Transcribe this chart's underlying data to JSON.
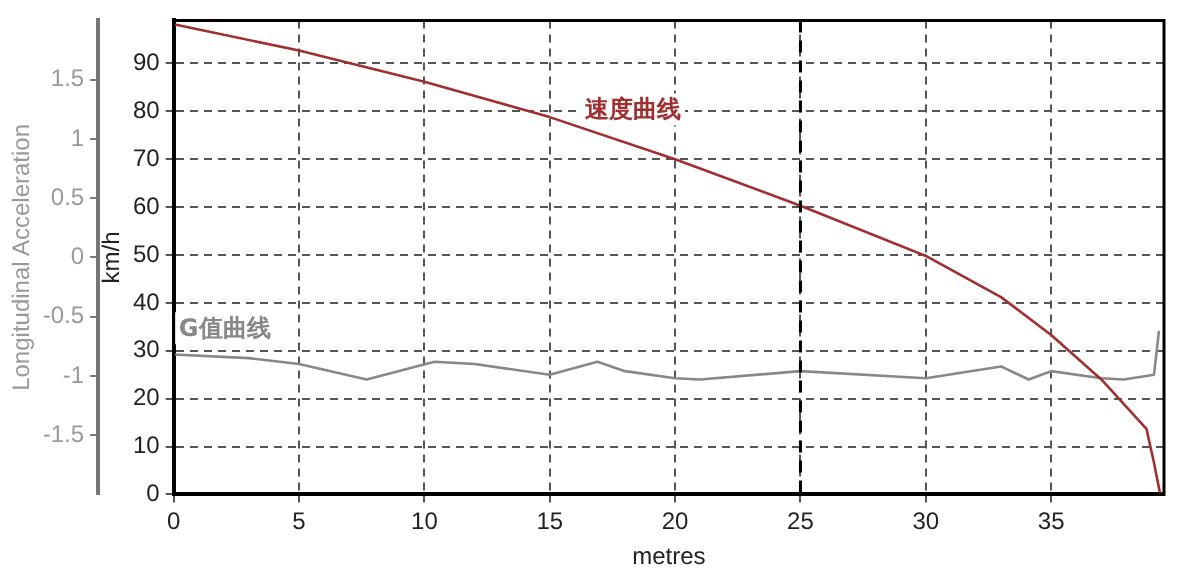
{
  "chart_data": {
    "type": "line",
    "xlabel": "metres",
    "ylabel": "km/h",
    "y2label": "Longitudinal Acceleration",
    "xlim": [
      0,
      39.5
    ],
    "xticks": [
      0,
      5,
      10,
      15,
      20,
      25,
      30,
      35
    ],
    "ylim": [
      0,
      99
    ],
    "yticks": [
      0,
      10,
      20,
      30,
      40,
      50,
      60,
      70,
      80,
      90
    ],
    "y2lim": [
      -2,
      2
    ],
    "y2ticks": [
      -1.5,
      -1,
      -0.5,
      0,
      0.5,
      1,
      1.5
    ],
    "grid": true,
    "legend": false,
    "marker": "none",
    "line_style": "solid",
    "ref_lines": [
      {
        "axis": "x",
        "value": 25,
        "color": "#000000",
        "line_style": "dashed"
      }
    ],
    "series": [
      {
        "name": "速度曲线",
        "color": "#a03030",
        "x": [
          0,
          5,
          10,
          15,
          20,
          25,
          30,
          33,
          35,
          37,
          38.8,
          39.1,
          39.35
        ],
        "values": [
          98.2,
          92.7,
          86.2,
          78.8,
          70,
          60.3,
          49.8,
          41.2,
          33.3,
          24,
          13.7,
          6.6,
          0
        ]
      },
      {
        "name": "G值曲线",
        "color": "#888888",
        "axis": "y2",
        "x": [
          0,
          3,
          5,
          7.7,
          10.4,
          12,
          15,
          16.9,
          18,
          20,
          21,
          25,
          30,
          33,
          34.1,
          35,
          37,
          37.9,
          39.1,
          39.3
        ],
        "values": [
          -0.82,
          -0.85,
          -0.9,
          -1.03,
          -0.88,
          -0.9,
          -0.99,
          -0.88,
          -0.96,
          -1.02,
          -1.03,
          -0.96,
          -1.02,
          -0.92,
          -1.03,
          -0.96,
          -1.02,
          -1.03,
          -0.99,
          -0.62
        ]
      }
    ]
  }
}
